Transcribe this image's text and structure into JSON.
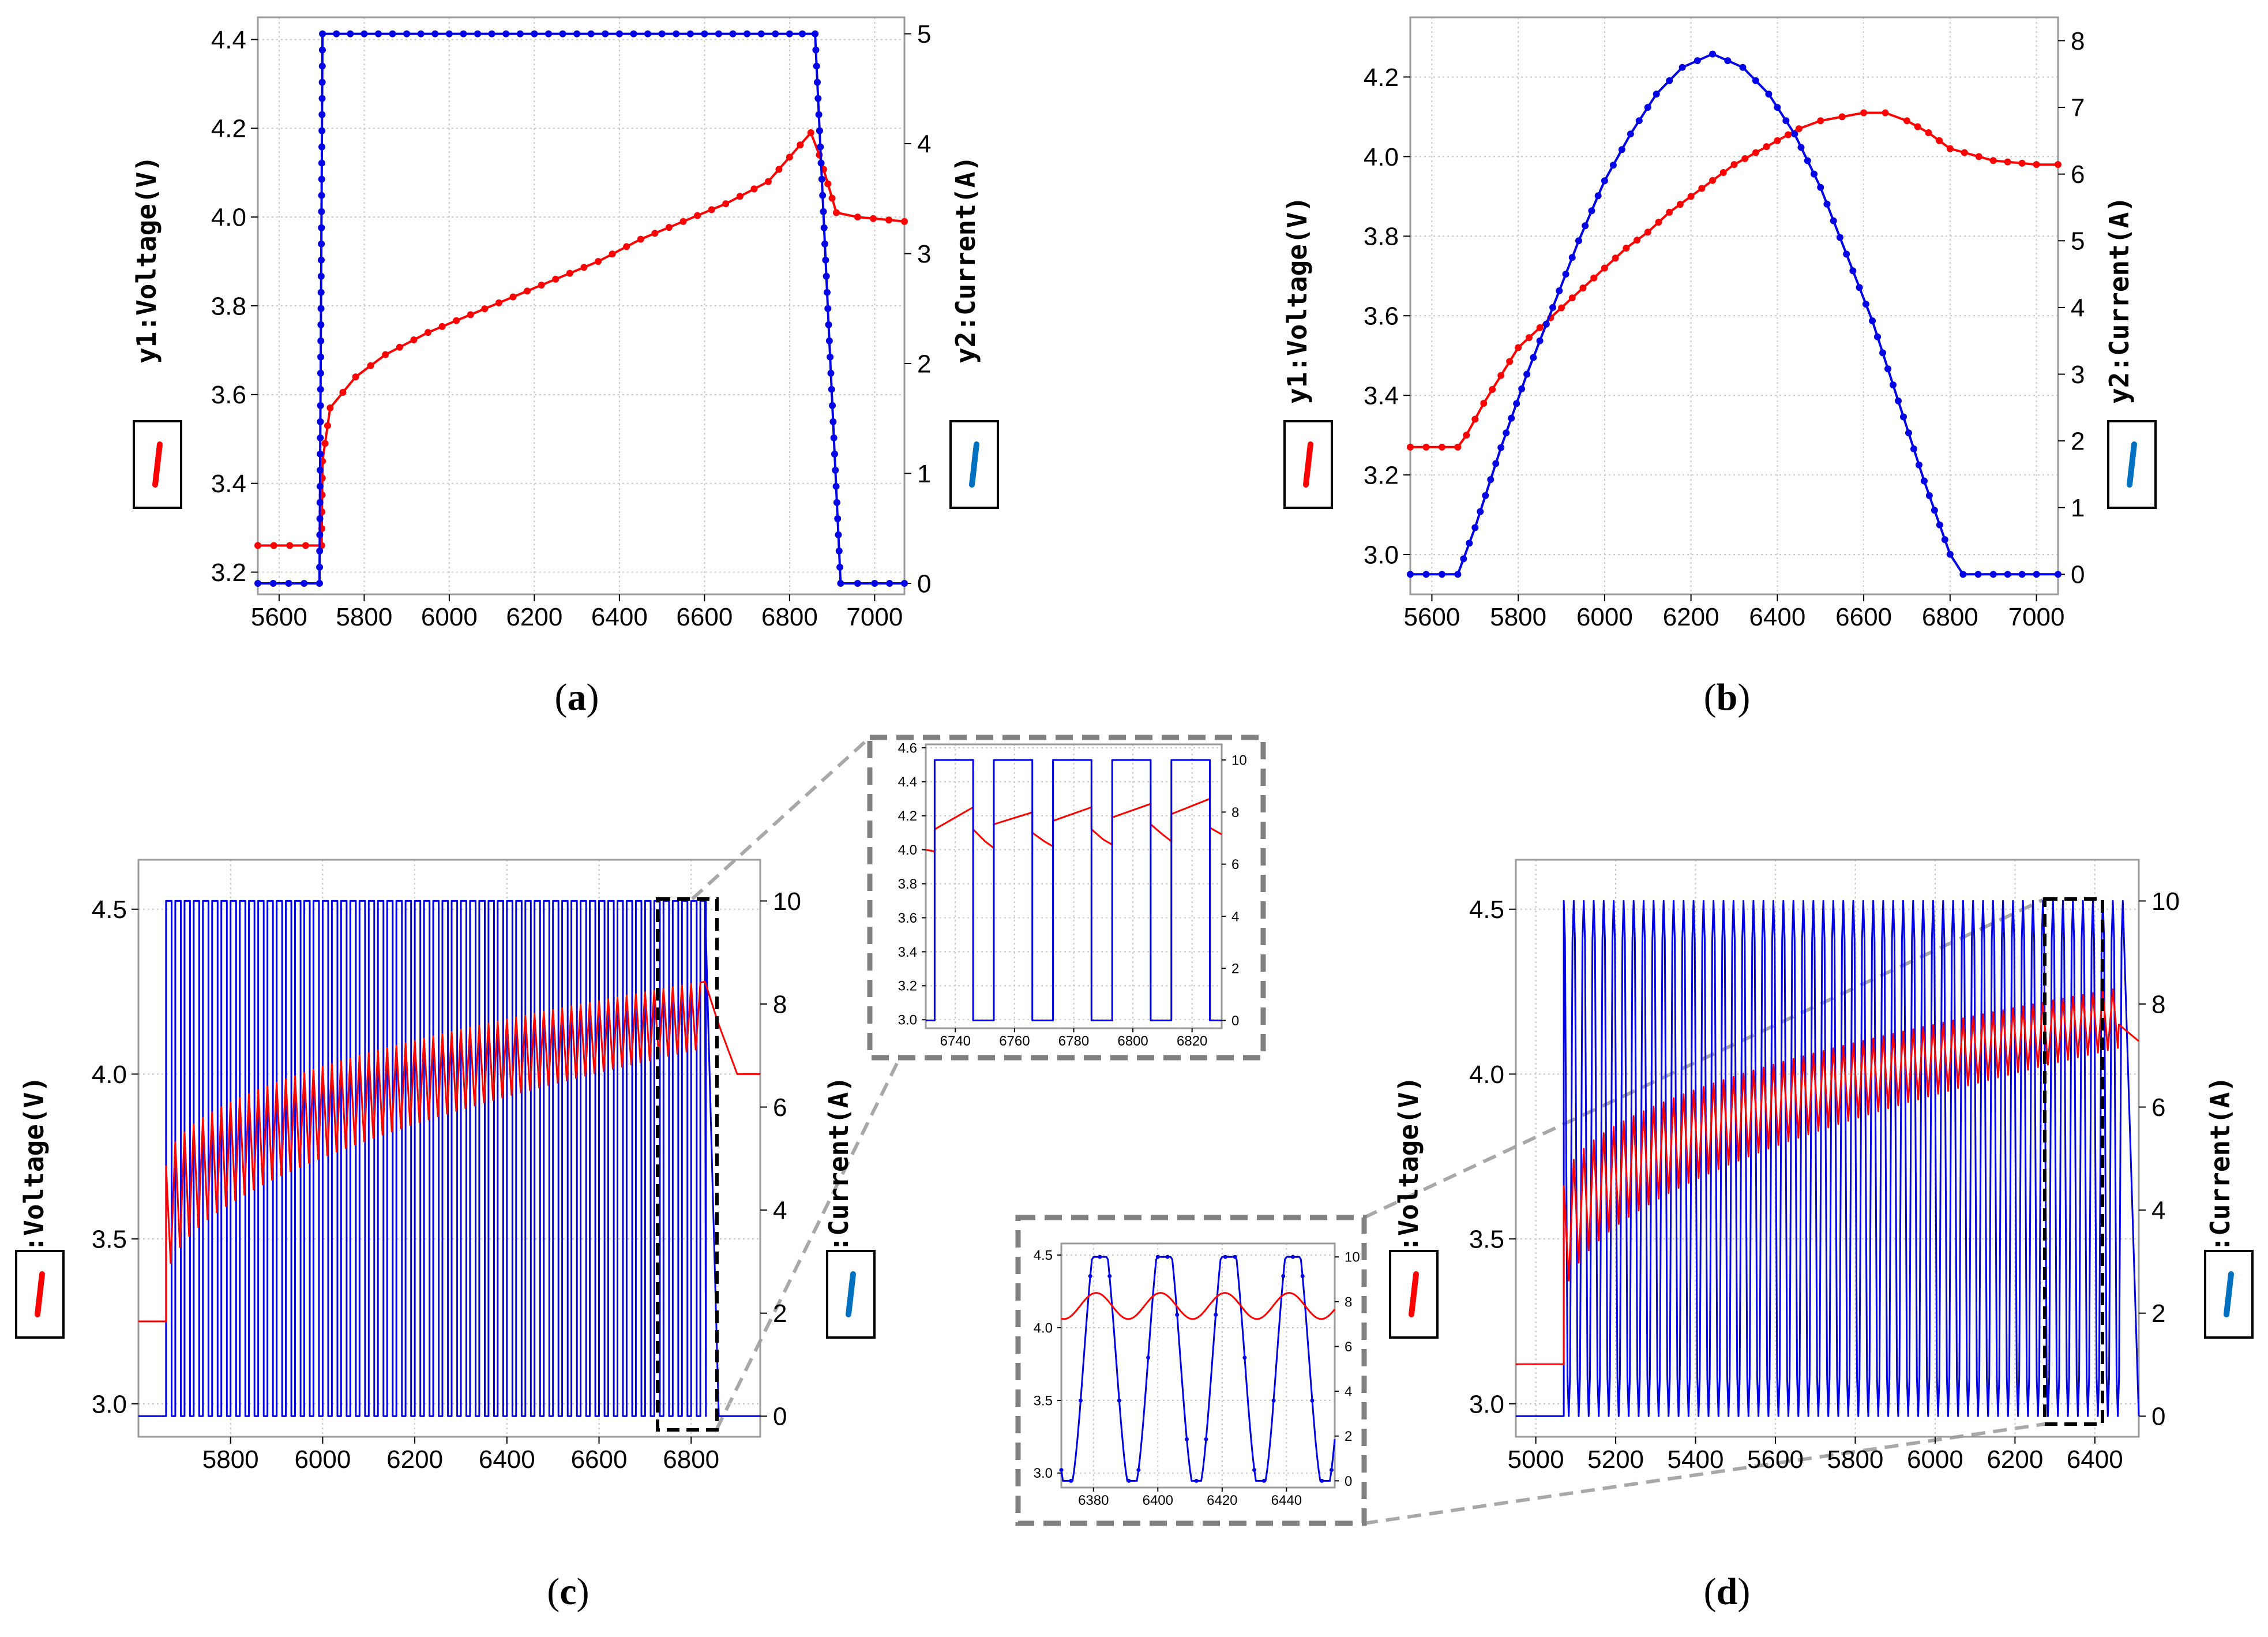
{
  "colors": {
    "voltage": "#ff0000",
    "current": "#0000e6",
    "frame": "#000000",
    "inset_border": "#808080",
    "grid": "#c8c8c8",
    "legend_bar": "#0070c0"
  },
  "chart_data": [
    {
      "id": "a",
      "panel_label": "(a)",
      "type": "line",
      "xlim": [
        5550,
        7070
      ],
      "x_ticks": [
        5600,
        5800,
        6000,
        6200,
        6400,
        6600,
        6800,
        7000
      ],
      "y1": {
        "label": "y1:Voltage(V)",
        "ylim": [
          3.15,
          4.45
        ],
        "ticks": [
          3.2,
          3.4,
          3.6,
          3.8,
          4.0,
          4.2,
          4.4
        ]
      },
      "y2": {
        "label": "y2:Current(A)",
        "ylim": [
          -0.1,
          5.15
        ],
        "ticks": [
          0,
          1,
          2,
          3,
          4,
          5
        ]
      },
      "series": [
        {
          "axis": "y1",
          "color": "voltage",
          "x": [
            5550,
            5700,
            5702,
            5720,
            5780,
            5850,
            5950,
            6050,
            6150,
            6250,
            6350,
            6450,
            6550,
            6650,
            6750,
            6850,
            6870,
            6910,
            6960,
            7070
          ],
          "y": [
            3.26,
            3.26,
            3.45,
            3.57,
            3.64,
            3.69,
            3.74,
            3.78,
            3.82,
            3.86,
            3.9,
            3.95,
            3.99,
            4.03,
            4.08,
            4.19,
            4.14,
            4.01,
            4.0,
            3.99
          ]
        },
        {
          "axis": "y2",
          "color": "current",
          "x": [
            5550,
            5695,
            5702,
            5800,
            5900,
            6000,
            6100,
            6200,
            6300,
            6400,
            6500,
            6600,
            6700,
            6800,
            6860,
            6920,
            6960,
            7000,
            7070
          ],
          "y": [
            0,
            0,
            5,
            5,
            5,
            5,
            5,
            5,
            5,
            5,
            5,
            5,
            5,
            5,
            5,
            0,
            0,
            0,
            0
          ]
        }
      ]
    },
    {
      "id": "b",
      "panel_label": "(b)",
      "type": "line",
      "xlim": [
        5550,
        7050
      ],
      "x_ticks": [
        5600,
        5800,
        6000,
        6200,
        6400,
        6600,
        6800,
        7000
      ],
      "y1": {
        "label": "y1:Voltage(V)",
        "ylim": [
          2.9,
          4.35
        ],
        "ticks": [
          3.0,
          3.2,
          3.4,
          3.6,
          3.8,
          4.0,
          4.2
        ]
      },
      "y2": {
        "label": "y2:Current(A)",
        "ylim": [
          -0.3,
          8.35
        ],
        "ticks": [
          0,
          1,
          2,
          3,
          4,
          5,
          6,
          7,
          8
        ]
      },
      "series": [
        {
          "axis": "y1",
          "color": "voltage",
          "x": [
            5550,
            5660,
            5680,
            5720,
            5760,
            5800,
            5850,
            5900,
            5950,
            6000,
            6050,
            6100,
            6150,
            6200,
            6250,
            6300,
            6350,
            6400,
            6450,
            6500,
            6550,
            6600,
            6650,
            6700,
            6750,
            6800,
            6900,
            7000,
            7050
          ],
          "y": [
            3.27,
            3.27,
            3.3,
            3.38,
            3.45,
            3.52,
            3.57,
            3.62,
            3.67,
            3.72,
            3.77,
            3.81,
            3.86,
            3.9,
            3.94,
            3.98,
            4.01,
            4.04,
            4.07,
            4.09,
            4.1,
            4.11,
            4.11,
            4.09,
            4.06,
            4.02,
            3.99,
            3.98,
            3.98
          ]
        },
        {
          "axis": "y2",
          "color": "current",
          "x": [
            5550,
            5660,
            5700,
            5760,
            5820,
            5880,
            5940,
            6000,
            6060,
            6120,
            6180,
            6250,
            6320,
            6380,
            6440,
            6500,
            6560,
            6620,
            6680,
            6740,
            6800,
            6830,
            6900,
            7000,
            7050
          ],
          "y": [
            0,
            0,
            0.7,
            1.9,
            3.0,
            4.0,
            5.0,
            5.9,
            6.6,
            7.2,
            7.6,
            7.8,
            7.6,
            7.2,
            6.6,
            5.8,
            4.8,
            3.8,
            2.6,
            1.4,
            0.3,
            0,
            0,
            0,
            0
          ]
        }
      ]
    },
    {
      "id": "c",
      "panel_label": "(c)",
      "type": "line",
      "xlim": [
        5600,
        6950
      ],
      "x_ticks": [
        5800,
        6000,
        6200,
        6400,
        6600,
        6800
      ],
      "y1": {
        "label": "y1:Voltage(V)",
        "ylim": [
          2.9,
          4.65
        ],
        "ticks": [
          3.0,
          3.5,
          4.0,
          4.5
        ]
      },
      "y2": {
        "label": "y2:Current(A)",
        "ylim": [
          -0.4,
          10.8
        ],
        "ticks": [
          0,
          2,
          4,
          6,
          8,
          10
        ]
      },
      "pulse_series": {
        "x_start": 5660,
        "x_end": 6830,
        "period": 20,
        "current_high": 10,
        "current_low": 0,
        "voltage_start_low": 3.36,
        "voltage_start_high": 3.72,
        "voltage_end_low": 4.08,
        "voltage_end_high": 4.28,
        "pre_voltage": 3.25,
        "tail": {
          "x": [
            6830,
            6860,
            6900,
            6950
          ],
          "voltage": [
            4.28,
            4.15,
            4.0,
            4.0
          ],
          "current_drop_x": 6860
        }
      }
    },
    {
      "id": "d",
      "panel_label": "(d)",
      "type": "line",
      "xlim": [
        4950,
        6510
      ],
      "x_ticks": [
        5000,
        5200,
        5400,
        5600,
        5800,
        6000,
        6200,
        6400
      ],
      "y1": {
        "label": "y1:Voltage(V)",
        "ylim": [
          2.9,
          4.65
        ],
        "ticks": [
          3.0,
          3.5,
          4.0,
          4.5
        ]
      },
      "y2": {
        "label": "y2:Current(A)",
        "ylim": [
          -0.4,
          10.8
        ],
        "ticks": [
          0,
          2,
          4,
          6,
          8,
          10
        ]
      },
      "pulse_series": {
        "x_start": 5070,
        "x_end": 6460,
        "period": 25,
        "current_high": 10,
        "current_low": 0,
        "sine": true,
        "voltage_start_low": 3.3,
        "voltage_start_high": 3.66,
        "voltage_end_low": 4.08,
        "voltage_end_high": 4.26,
        "pre_voltage": 3.12,
        "tail": {
          "x": [
            6460,
            6510
          ],
          "voltage": [
            4.15,
            4.1
          ]
        }
      }
    },
    {
      "id": "inset-c",
      "type": "line",
      "xlim": [
        6730,
        6830
      ],
      "x_ticks": [
        6740,
        6760,
        6780,
        6800,
        6820
      ],
      "y1": {
        "ylim": [
          2.95,
          4.62
        ],
        "ticks": [
          3.0,
          3.2,
          3.4,
          3.6,
          3.8,
          4.0,
          4.2,
          4.4,
          4.6
        ]
      },
      "y2": {
        "ylim": [
          -0.3,
          10.6
        ],
        "ticks": [
          0,
          2,
          4,
          6,
          8,
          10
        ]
      },
      "series": [
        {
          "axis": "y1",
          "color": "voltage",
          "x": [
            6730,
            6733,
            6733,
            6746,
            6746,
            6750,
            6753,
            6753,
            6766,
            6766,
            6770,
            6773,
            6773,
            6786,
            6786,
            6790,
            6793,
            6793,
            6806,
            6806,
            6810,
            6813,
            6813,
            6826,
            6826,
            6830
          ],
          "y": [
            4.0,
            3.99,
            4.12,
            4.25,
            4.12,
            4.05,
            4.01,
            4.15,
            4.22,
            4.1,
            4.05,
            4.02,
            4.17,
            4.25,
            4.12,
            4.06,
            4.03,
            4.19,
            4.27,
            4.15,
            4.09,
            4.05,
            4.21,
            4.3,
            4.13,
            4.09
          ]
        },
        {
          "axis": "y2",
          "color": "current",
          "x": [
            6730,
            6733,
            6733,
            6746,
            6746,
            6753,
            6753,
            6766,
            6766,
            6773,
            6773,
            6786,
            6786,
            6793,
            6793,
            6806,
            6806,
            6813,
            6813,
            6826,
            6826,
            6830
          ],
          "y": [
            0,
            0,
            10,
            10,
            0,
            0,
            10,
            10,
            0,
            0,
            10,
            10,
            0,
            0,
            10,
            10,
            0,
            0,
            10,
            10,
            0,
            0
          ]
        }
      ]
    },
    {
      "id": "inset-d",
      "type": "line",
      "xlim": [
        6370,
        6455
      ],
      "x_ticks": [
        6380,
        6400,
        6420,
        6440
      ],
      "y1": {
        "ylim": [
          2.9,
          4.58
        ],
        "ticks": [
          3.0,
          3.5,
          4.0,
          4.5
        ]
      },
      "y2": {
        "ylim": [
          -0.3,
          10.6
        ],
        "ticks": [
          0,
          2,
          4,
          6,
          8,
          10
        ]
      },
      "wave": {
        "period": 20,
        "phase": 6372,
        "current_max": 10,
        "voltage_mid": 4.15,
        "voltage_amp": 0.09
      }
    }
  ]
}
